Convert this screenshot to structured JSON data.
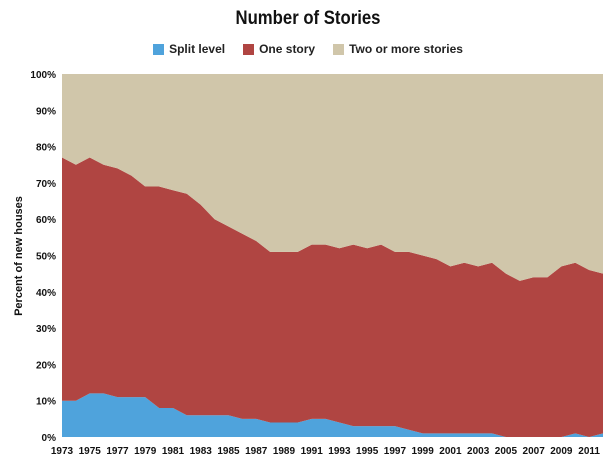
{
  "chart_data": {
    "type": "area",
    "stacked": true,
    "title": "Number of Stories",
    "xlabel": "",
    "ylabel": "Percent of new houses",
    "ylim": [
      0,
      100
    ],
    "yticks": [
      "0%",
      "10%",
      "20%",
      "30%",
      "40%",
      "50%",
      "60%",
      "70%",
      "80%",
      "90%",
      "100%"
    ],
    "xlim": [
      1973,
      2012
    ],
    "xticks": [
      "1973",
      "1975",
      "1977",
      "1979",
      "1981",
      "1983",
      "1985",
      "1987",
      "1989",
      "1991",
      "1993",
      "1995",
      "1997",
      "1999",
      "2001",
      "2003",
      "2005",
      "2007",
      "2009",
      "2011"
    ],
    "legend_position": "top",
    "grid": false,
    "x": [
      1973,
      1974,
      1975,
      1976,
      1977,
      1978,
      1979,
      1980,
      1981,
      1982,
      1983,
      1984,
      1985,
      1986,
      1987,
      1988,
      1989,
      1990,
      1991,
      1992,
      1993,
      1994,
      1995,
      1996,
      1997,
      1998,
      1999,
      2000,
      2001,
      2002,
      2003,
      2004,
      2005,
      2006,
      2007,
      2008,
      2009,
      2010,
      2011,
      2012
    ],
    "series": [
      {
        "name": "Split level",
        "color": "#4fa3dc",
        "values": [
          10,
          10,
          12,
          12,
          11,
          11,
          11,
          8,
          8,
          6,
          6,
          6,
          6,
          5,
          5,
          4,
          4,
          4,
          5,
          5,
          4,
          3,
          3,
          3,
          3,
          2,
          1,
          1,
          1,
          1,
          1,
          1,
          0,
          0,
          0,
          0,
          0,
          1,
          0,
          1
        ]
      },
      {
        "name": "One story",
        "color": "#b04542",
        "values": [
          67,
          65,
          65,
          63,
          63,
          61,
          58,
          61,
          60,
          61,
          58,
          54,
          52,
          51,
          49,
          47,
          47,
          47,
          48,
          48,
          48,
          50,
          49,
          50,
          48,
          49,
          49,
          48,
          46,
          47,
          46,
          47,
          45,
          43,
          44,
          44,
          47,
          47,
          46,
          44
        ]
      },
      {
        "name": "Two or more stories",
        "color": "#d0c6aa",
        "values": [
          23,
          25,
          23,
          25,
          26,
          28,
          31,
          31,
          32,
          33,
          36,
          40,
          42,
          44,
          46,
          49,
          49,
          49,
          47,
          47,
          48,
          47,
          48,
          47,
          49,
          49,
          50,
          51,
          53,
          52,
          53,
          52,
          55,
          57,
          56,
          56,
          53,
          52,
          54,
          55
        ]
      }
    ]
  }
}
